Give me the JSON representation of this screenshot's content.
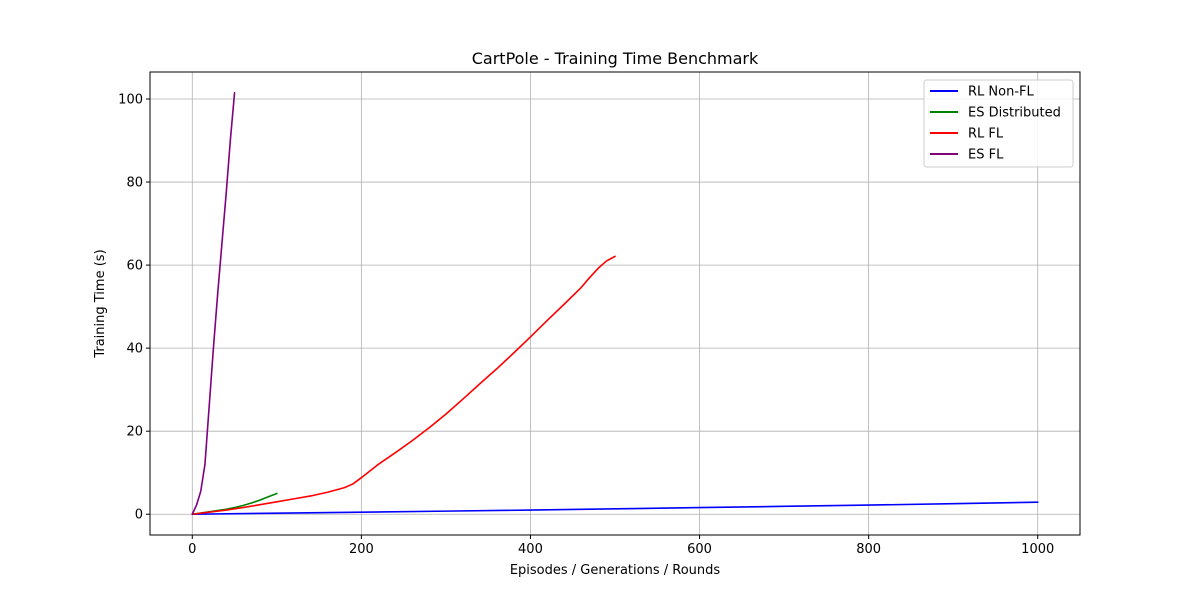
{
  "chart_data": {
    "type": "line",
    "title": "CartPole - Training Time Benchmark",
    "xlabel": "Episodes / Generations / Rounds",
    "ylabel": "Training Time (s)",
    "xlim": [
      -50,
      1050
    ],
    "ylim": [
      -5,
      106.5
    ],
    "xticks": [
      0,
      200,
      400,
      600,
      800,
      1000
    ],
    "yticks": [
      0,
      20,
      40,
      60,
      80,
      100
    ],
    "grid": true,
    "legend_position": "top-right",
    "series": [
      {
        "name": "RL Non-FL",
        "color": "#0000ff",
        "x": [
          0,
          100,
          200,
          300,
          400,
          500,
          600,
          700,
          800,
          900,
          1000
        ],
        "y": [
          0,
          0.25,
          0.5,
          0.75,
          1.0,
          1.3,
          1.6,
          1.9,
          2.2,
          2.55,
          2.9
        ]
      },
      {
        "name": "ES Distributed",
        "color": "#008000",
        "x": [
          0,
          10,
          20,
          30,
          40,
          50,
          60,
          70,
          80,
          90,
          100
        ],
        "y": [
          0,
          0.3,
          0.6,
          0.9,
          1.2,
          1.6,
          2.1,
          2.7,
          3.4,
          4.2,
          5.0
        ]
      },
      {
        "name": "RL FL",
        "color": "#ff0000",
        "x": [
          0,
          20,
          40,
          60,
          80,
          100,
          120,
          140,
          160,
          180,
          190,
          200,
          220,
          240,
          260,
          280,
          300,
          320,
          340,
          360,
          380,
          400,
          420,
          440,
          460,
          470,
          480,
          490,
          500
        ],
        "y": [
          0,
          0.5,
          1.0,
          1.6,
          2.3,
          3.0,
          3.7,
          4.4,
          5.3,
          6.4,
          7.3,
          8.8,
          12.0,
          14.8,
          17.7,
          20.8,
          24.1,
          27.7,
          31.4,
          35.0,
          38.8,
          42.7,
          46.7,
          50.6,
          54.6,
          57.0,
          59.2,
          61.0,
          62.1
        ]
      },
      {
        "name": "ES FL",
        "color": "#800080",
        "x": [
          0,
          5,
          10,
          15,
          20,
          25,
          30,
          35,
          40,
          45,
          50
        ],
        "y": [
          0,
          2.2,
          5.5,
          12.0,
          26.0,
          40.0,
          53.0,
          65.0,
          77.0,
          90.0,
          101.5
        ]
      }
    ]
  }
}
